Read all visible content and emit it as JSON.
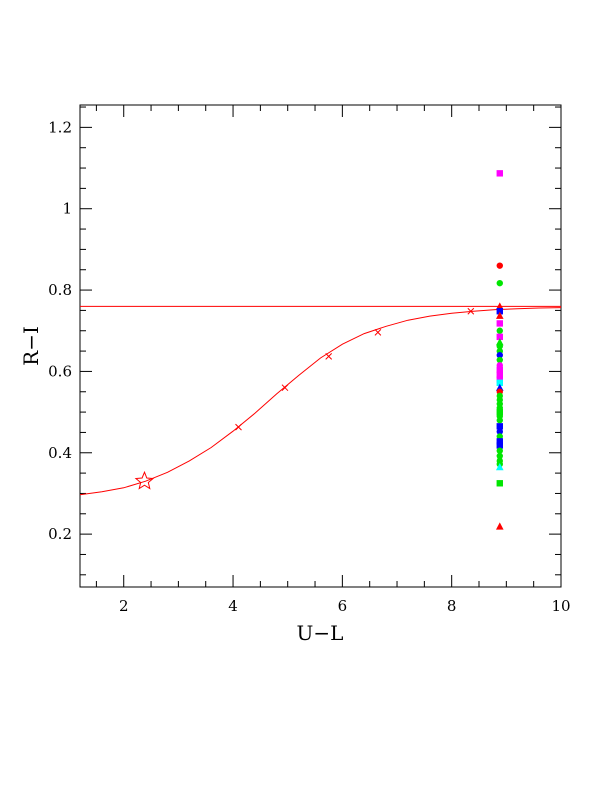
{
  "chart_data": {
    "type": "scatter",
    "xlabel": "U−L",
    "ylabel": "R−I",
    "xlim": [
      1.2,
      10.0
    ],
    "ylim": [
      0.07,
      1.255
    ],
    "x_ticks": [
      2,
      4,
      6,
      8,
      10
    ],
    "x_tick_labels": [
      "2",
      "4",
      "6",
      "8",
      "10"
    ],
    "y_ticks": [
      0.2,
      0.4,
      0.6,
      0.8,
      1.0,
      1.2
    ],
    "y_tick_labels": [
      "0.2",
      "0.4",
      "0.6",
      "0.8",
      "1",
      "1.2"
    ],
    "x_minor_step": 0.5,
    "y_minor_step": 0.05,
    "colors": {
      "curve": "#ff0000",
      "red": "#ff0000",
      "green": "#00e600",
      "blue": "#0000ff",
      "magenta": "#ff00ff",
      "cyan": "#00ffff"
    },
    "horizontal_line": {
      "y": 0.76,
      "color": "#ff0000"
    },
    "curve": {
      "x": [
        1.2,
        1.6,
        2.0,
        2.4,
        2.8,
        3.2,
        3.6,
        4.0,
        4.4,
        4.8,
        5.2,
        5.6,
        6.0,
        6.4,
        6.8,
        7.2,
        7.6,
        8.0,
        8.4,
        8.8,
        9.2,
        9.6,
        10.0
      ],
      "y": [
        0.297,
        0.304,
        0.314,
        0.33,
        0.352,
        0.38,
        0.413,
        0.453,
        0.497,
        0.545,
        0.59,
        0.633,
        0.667,
        0.693,
        0.711,
        0.726,
        0.736,
        0.743,
        0.748,
        0.752,
        0.754,
        0.756,
        0.757
      ],
      "color": "#ff0000"
    },
    "curve_markers": {
      "x": [
        4.1,
        4.95,
        5.75,
        6.65,
        8.35
      ],
      "y": [
        0.463,
        0.56,
        0.637,
        0.696,
        0.748
      ],
      "marker": "x"
    },
    "star": {
      "x": 2.38,
      "y": 0.33,
      "color": "#ff0000"
    },
    "points": {
      "x": 8.88,
      "items": [
        {
          "y": 1.087,
          "color": "magenta",
          "marker": "square"
        },
        {
          "y": 0.86,
          "color": "red",
          "marker": "circle"
        },
        {
          "y": 0.817,
          "color": "green",
          "marker": "circle"
        },
        {
          "y": 0.76,
          "color": "red",
          "marker": "triangle"
        },
        {
          "y": 0.748,
          "color": "blue",
          "marker": "square"
        },
        {
          "y": 0.737,
          "color": "red",
          "marker": "triangle"
        },
        {
          "y": 0.718,
          "color": "magenta",
          "marker": "square"
        },
        {
          "y": 0.7,
          "color": "green",
          "marker": "circle"
        },
        {
          "y": 0.685,
          "color": "magenta",
          "marker": "square"
        },
        {
          "y": 0.672,
          "color": "green",
          "marker": "triangle"
        },
        {
          "y": 0.662,
          "color": "green",
          "marker": "circle"
        },
        {
          "y": 0.65,
          "color": "green",
          "marker": "circle"
        },
        {
          "y": 0.64,
          "color": "blue",
          "marker": "circle"
        },
        {
          "y": 0.628,
          "color": "green",
          "marker": "circle"
        },
        {
          "y": 0.615,
          "color": "magenta",
          "marker": "circle"
        },
        {
          "y": 0.604,
          "color": "magenta",
          "marker": "square"
        },
        {
          "y": 0.592,
          "color": "magenta",
          "marker": "square"
        },
        {
          "y": 0.58,
          "color": "magenta",
          "marker": "square"
        },
        {
          "y": 0.572,
          "color": "cyan",
          "marker": "square"
        },
        {
          "y": 0.56,
          "color": "blue",
          "marker": "triangle"
        },
        {
          "y": 0.55,
          "color": "red",
          "marker": "circle"
        },
        {
          "y": 0.54,
          "color": "green",
          "marker": "circle"
        },
        {
          "y": 0.53,
          "color": "green",
          "marker": "circle"
        },
        {
          "y": 0.52,
          "color": "green",
          "marker": "circle"
        },
        {
          "y": 0.51,
          "color": "green",
          "marker": "circle"
        },
        {
          "y": 0.5,
          "color": "green",
          "marker": "square"
        },
        {
          "y": 0.49,
          "color": "green",
          "marker": "circle"
        },
        {
          "y": 0.48,
          "color": "green",
          "marker": "circle"
        },
        {
          "y": 0.465,
          "color": "blue",
          "marker": "square"
        },
        {
          "y": 0.452,
          "color": "blue",
          "marker": "circle"
        },
        {
          "y": 0.44,
          "color": "green",
          "marker": "circle"
        },
        {
          "y": 0.428,
          "color": "blue",
          "marker": "square"
        },
        {
          "y": 0.418,
          "color": "blue",
          "marker": "square"
        },
        {
          "y": 0.405,
          "color": "green",
          "marker": "circle"
        },
        {
          "y": 0.392,
          "color": "green",
          "marker": "circle"
        },
        {
          "y": 0.38,
          "color": "green",
          "marker": "circle"
        },
        {
          "y": 0.372,
          "color": "green",
          "marker": "circle"
        },
        {
          "y": 0.365,
          "color": "cyan",
          "marker": "triangle"
        },
        {
          "y": 0.325,
          "color": "green",
          "marker": "square"
        },
        {
          "y": 0.219,
          "color": "red",
          "marker": "triangle"
        }
      ]
    }
  }
}
